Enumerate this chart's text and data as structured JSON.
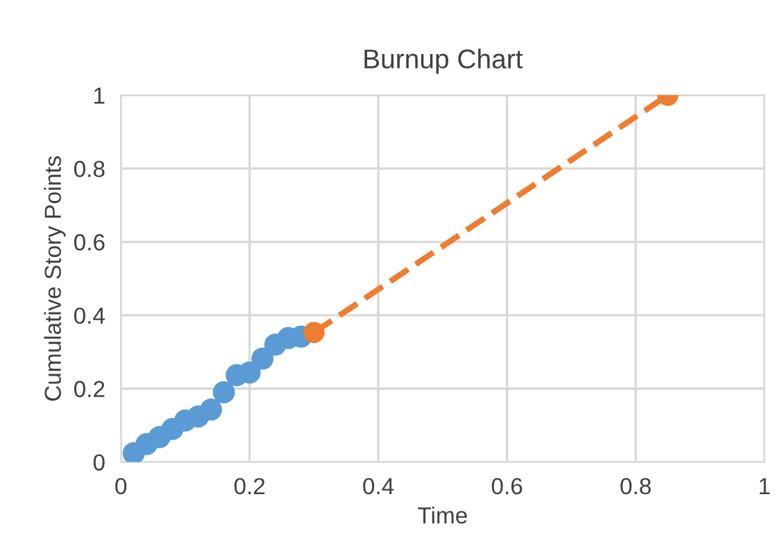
{
  "chart_data": {
    "type": "scatter",
    "title": "Burnup Chart",
    "xlabel": "Time",
    "ylabel": "Cumulative Story Points",
    "series": [
      {
        "color": "#5b9bd5",
        "marker": "circle",
        "x": [
          0.02,
          0.04,
          0.06,
          0.08,
          0.1,
          0.12,
          0.14,
          0.16,
          0.18,
          0.2,
          0.22,
          0.24,
          0.26,
          0.28
        ],
        "values": [
          0.024,
          0.049,
          0.068,
          0.09,
          0.113,
          0.124,
          0.143,
          0.19,
          0.237,
          0.244,
          0.282,
          0.32,
          0.338,
          0.342
        ]
      },
      {
        "type": "line",
        "color": "#ed7d31",
        "marker": "circle",
        "line_style": "dashed",
        "x": [
          0.3,
          0.85
        ],
        "values": [
          0.353,
          1.0
        ]
      }
    ],
    "xlim": [
      0,
      1
    ],
    "ylim": [
      0,
      1
    ],
    "xticks": [
      0,
      0.2,
      0.4,
      0.6,
      0.8,
      1
    ],
    "yticks": [
      0,
      0.2,
      0.4,
      0.6,
      0.8,
      1
    ],
    "grid": true,
    "legend": false
  }
}
